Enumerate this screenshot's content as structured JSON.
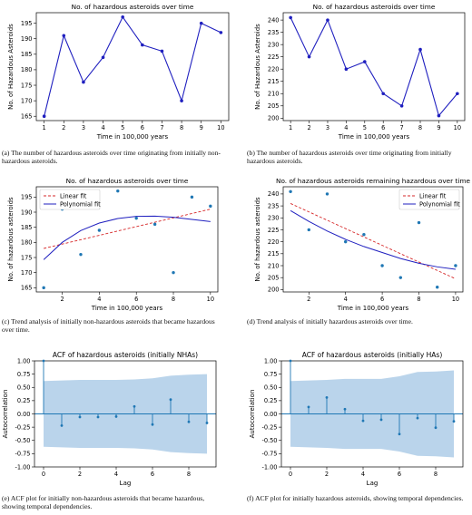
{
  "colors": {
    "line": "#1f1fbf",
    "dot": "#1f77b4",
    "linear": "#d62728",
    "poly": "#1f1fbf",
    "band": "#aecde8",
    "stem": "#1f77b4"
  },
  "chart_data": [
    {
      "id": "a",
      "type": "line",
      "title": "No. of hazardous asteroids over time",
      "xlabel": "Time in 100,000 years",
      "ylabel": "No. of Hazardous Asteroids",
      "x": [
        1,
        2,
        3,
        4,
        5,
        6,
        7,
        8,
        9,
        10
      ],
      "values": [
        165,
        191,
        176,
        184,
        197,
        188,
        186,
        170,
        195,
        192
      ],
      "xlim": [
        0.6,
        10.4
      ],
      "ylim": [
        163.6,
        198.4
      ],
      "xticks": [
        1,
        2,
        3,
        4,
        5,
        6,
        7,
        8,
        9,
        10
      ],
      "yticks": [
        165,
        170,
        175,
        180,
        185,
        190,
        195
      ],
      "caption": "(a) The number of hazardous asteroids over time originating from initially non-hazardous asteroids."
    },
    {
      "id": "b",
      "type": "line",
      "title": "No. of hazardous asteroids over time",
      "xlabel": "Time in 100,000 years",
      "ylabel": "No. of Hazardous Asteroids",
      "x": [
        1,
        2,
        3,
        4,
        5,
        6,
        7,
        8,
        9,
        10
      ],
      "values": [
        241,
        225,
        240,
        220,
        223,
        210,
        205,
        228,
        201,
        210
      ],
      "xlim": [
        0.6,
        10.4
      ],
      "ylim": [
        199,
        243
      ],
      "xticks": [
        1,
        2,
        3,
        4,
        5,
        6,
        7,
        8,
        9,
        10
      ],
      "yticks": [
        200,
        205,
        210,
        215,
        220,
        225,
        230,
        235,
        240
      ],
      "caption": "(b) The number of hazardous asteroids over time originating from initially hazardous asteroids."
    },
    {
      "id": "c",
      "type": "scatter",
      "title": "No. of hazardous asteroids over time",
      "xlabel": "Time in 100,000 years",
      "ylabel": "No. of hazardous asteroids",
      "x": [
        1,
        2,
        3,
        4,
        5,
        6,
        7,
        8,
        9,
        10
      ],
      "values": [
        165,
        191,
        176,
        184,
        197,
        188,
        186,
        170,
        195,
        192
      ],
      "linear_fit": [
        178,
        191
      ],
      "poly_fit": [
        174.3,
        180.0,
        183.9,
        186.4,
        187.9,
        188.6,
        188.7,
        188.3,
        187.6,
        186.9
      ],
      "legend": [
        "Linear fit",
        "Polynomial fit"
      ],
      "legend_position": "top-left",
      "xlim": [
        0.6,
        10.4
      ],
      "ylim": [
        163.6,
        198.4
      ],
      "xticks": [
        2,
        4,
        6,
        8,
        10
      ],
      "yticks": [
        165,
        170,
        175,
        180,
        185,
        190,
        195
      ],
      "caption": "(c) Trend analysis of initially non-hazardous asteroids that became hazardous over time."
    },
    {
      "id": "d",
      "type": "scatter",
      "title": "No. of hazardous asteroids remaining hazardous over time",
      "xlabel": "Time in 100,000 years",
      "ylabel": "No. of hazardous asteroids",
      "x": [
        1,
        2,
        3,
        4,
        5,
        6,
        7,
        8,
        9,
        10
      ],
      "values": [
        241,
        225,
        240,
        220,
        223,
        210,
        205,
        228,
        201,
        210
      ],
      "linear_fit": [
        236,
        204.5
      ],
      "poly_fit": [
        233,
        228.5,
        224.5,
        221,
        218,
        215.5,
        213,
        211,
        209.5,
        208.5
      ],
      "legend": [
        "Linear fit",
        "Polynomial fit"
      ],
      "legend_position": "top-right",
      "xlim": [
        0.6,
        10.4
      ],
      "ylim": [
        199,
        243
      ],
      "xticks": [
        2,
        4,
        6,
        8,
        10
      ],
      "yticks": [
        200,
        205,
        210,
        215,
        220,
        225,
        230,
        235,
        240
      ],
      "caption": "(d) Trend analysis of initially hazardous asteroids over time."
    },
    {
      "id": "e",
      "type": "acf",
      "title": "ACF of hazardous asteroids (initially NHAs)",
      "xlabel": "Lag",
      "ylabel": "Autocorrelation",
      "lags": [
        0,
        1,
        2,
        3,
        4,
        5,
        6,
        7,
        8,
        9
      ],
      "values": [
        1.0,
        -0.22,
        -0.06,
        -0.06,
        -0.05,
        0.14,
        -0.2,
        0.27,
        -0.15,
        -0.17
      ],
      "confidence_upper": [
        0.62,
        0.63,
        0.64,
        0.64,
        0.64,
        0.65,
        0.67,
        0.72,
        0.74,
        0.75
      ],
      "xlim": [
        -0.5,
        9.5
      ],
      "ylim": [
        -1.0,
        1.0
      ],
      "xticks": [
        0,
        2,
        4,
        6,
        8
      ],
      "yticks": [
        -1.0,
        -0.75,
        -0.5,
        -0.25,
        0.0,
        0.25,
        0.5,
        0.75,
        1.0
      ],
      "caption": "(e) ACF plot for initially non-hazardous asteroids that became hazardous, showing temporal dependencies."
    },
    {
      "id": "f",
      "type": "acf",
      "title": "ACF of hazardous asteroids (initially HAs)",
      "xlabel": "Lag",
      "ylabel": "Autocorrelation",
      "lags": [
        0,
        1,
        2,
        3,
        4,
        5,
        6,
        7,
        8,
        9
      ],
      "values": [
        1.0,
        0.13,
        0.31,
        0.09,
        -0.13,
        -0.11,
        -0.38,
        -0.08,
        -0.26,
        -0.14
      ],
      "confidence_upper": [
        0.62,
        0.63,
        0.64,
        0.66,
        0.66,
        0.66,
        0.71,
        0.79,
        0.8,
        0.82
      ],
      "xlim": [
        -0.5,
        9.5
      ],
      "ylim": [
        -1.0,
        1.0
      ],
      "xticks": [
        0,
        2,
        4,
        6,
        8
      ],
      "yticks": [
        -1.0,
        -0.75,
        -0.5,
        -0.25,
        0.0,
        0.25,
        0.5,
        0.75,
        1.0
      ],
      "caption": "(f) ACF plot for initially hazardous asteroids, showing temporal dependencies."
    }
  ]
}
